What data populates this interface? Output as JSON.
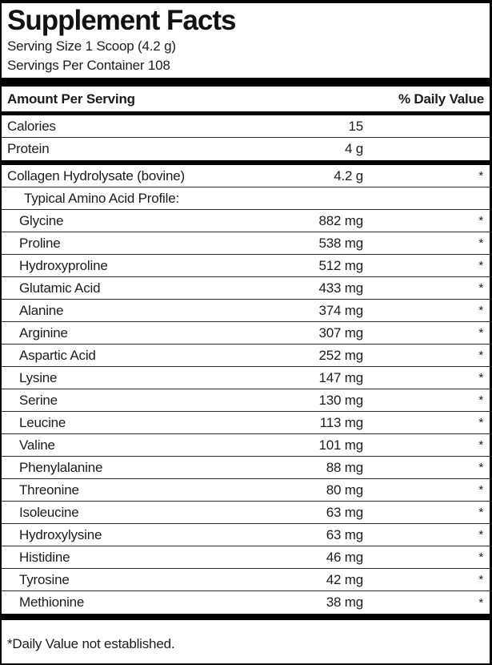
{
  "label": {
    "title": "Supplement Facts",
    "serving_size": "Serving Size 1 Scoop (4.2 g)",
    "servings_per_container": "Servings Per Container 108",
    "header": {
      "amount_per_serving": "Amount Per Serving",
      "daily_value": "% Daily Value"
    },
    "rows": [
      {
        "name": "Calories",
        "amount": "15",
        "dv": ""
      },
      {
        "name": "Protein",
        "amount": "4 g",
        "dv": ""
      },
      {
        "name": "Collagen Hydrolysate (bovine)",
        "amount": "4.2 g",
        "dv": "*"
      },
      {
        "name": "Typical Amino Acid Profile:",
        "amount": "",
        "dv": ""
      },
      {
        "name": "Glycine",
        "amount": "882 mg",
        "dv": "*"
      },
      {
        "name": "Proline",
        "amount": "538 mg",
        "dv": "*"
      },
      {
        "name": "Hydroxyproline",
        "amount": "512 mg",
        "dv": "*"
      },
      {
        "name": "Glutamic Acid",
        "amount": "433 mg",
        "dv": "*"
      },
      {
        "name": "Alanine",
        "amount": "374 mg",
        "dv": "*"
      },
      {
        "name": "Arginine",
        "amount": "307 mg",
        "dv": "*"
      },
      {
        "name": "Aspartic Acid",
        "amount": "252 mg",
        "dv": "*"
      },
      {
        "name": "Lysine",
        "amount": "147 mg",
        "dv": "*"
      },
      {
        "name": "Serine",
        "amount": "130 mg",
        "dv": "*"
      },
      {
        "name": "Leucine",
        "amount": "113 mg",
        "dv": "*"
      },
      {
        "name": "Valine",
        "amount": "101 mg",
        "dv": "*"
      },
      {
        "name": "Phenylalanine",
        "amount": "88 mg",
        "dv": "*"
      },
      {
        "name": "Threonine",
        "amount": "80 mg",
        "dv": "*"
      },
      {
        "name": "Isoleucine",
        "amount": "63 mg",
        "dv": "*"
      },
      {
        "name": "Hydroxylysine",
        "amount": "63 mg",
        "dv": "*"
      },
      {
        "name": "Histidine",
        "amount": "46 mg",
        "dv": "*"
      },
      {
        "name": "Tyrosine",
        "amount": "42 mg",
        "dv": "*"
      },
      {
        "name": "Methionine",
        "amount": "38 mg",
        "dv": "*"
      }
    ],
    "footnote": "*Daily Value not established."
  },
  "colors": {
    "text": "#1c1c1c",
    "rule_heavy": "#000000",
    "rule_thin": "#2b2b2b",
    "background": "#ffffff"
  }
}
